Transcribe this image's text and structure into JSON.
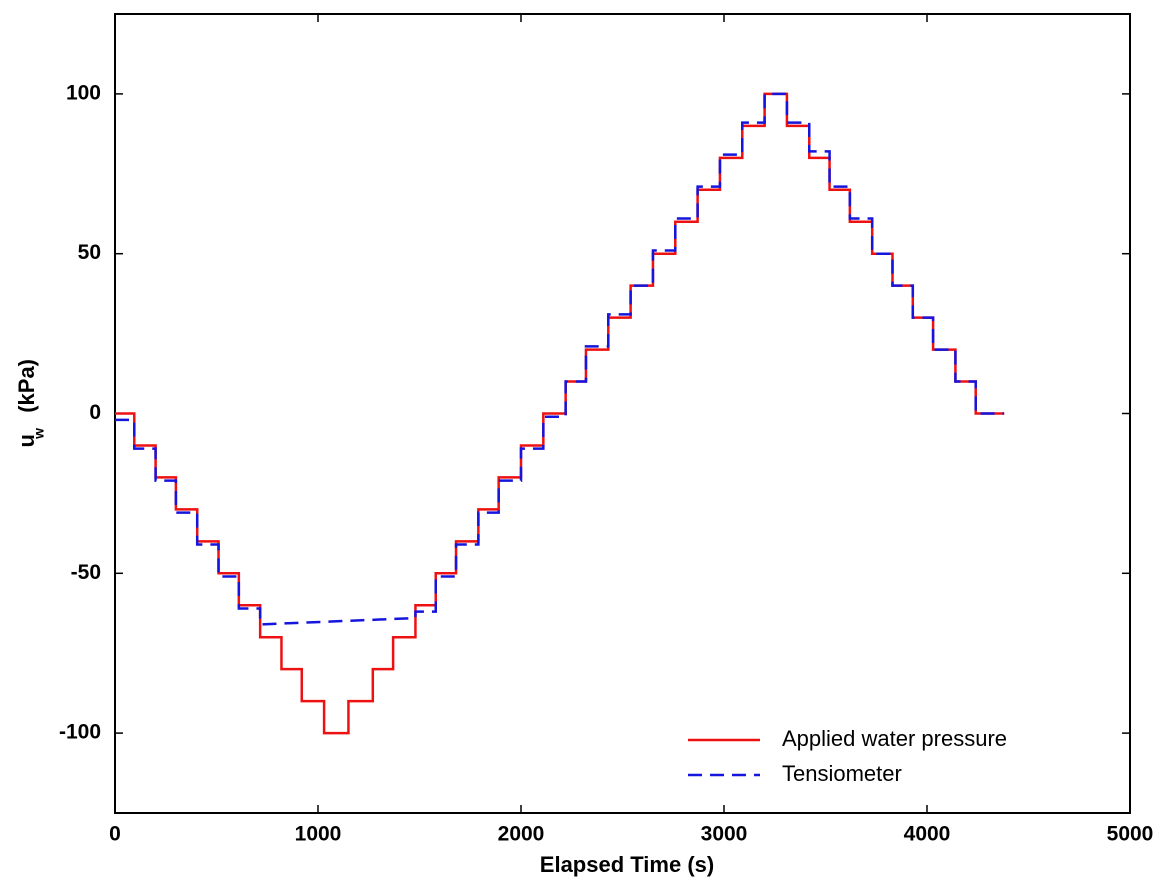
{
  "chart_data": {
    "type": "line",
    "x_label": "Elapsed Time (s)",
    "y_label": "u",
    "y_label_sub": "w",
    "y_label_unit": "(kPa)",
    "xlim": [
      0,
      5000
    ],
    "xticks": [
      0,
      1000,
      2000,
      3000,
      4000,
      5000
    ],
    "ylim": [
      -125,
      125
    ],
    "yticks": [
      -100,
      -50,
      0,
      50,
      100
    ],
    "grid": false,
    "legend": "lower right",
    "series": [
      {
        "name": "Applied water pressure",
        "color": "#ee1111",
        "dash": "solid",
        "x": [
          0,
          95,
          95,
          200,
          200,
          300,
          300,
          405,
          405,
          510,
          510,
          610,
          610,
          715,
          715,
          820,
          820,
          920,
          920,
          1030,
          1030,
          1150,
          1150,
          1270,
          1270,
          1370,
          1370,
          1480,
          1480,
          1580,
          1580,
          1680,
          1680,
          1790,
          1790,
          1890,
          1890,
          2000,
          2000,
          2110,
          2110,
          2220,
          2220,
          2320,
          2320,
          2430,
          2430,
          2540,
          2540,
          2650,
          2650,
          2760,
          2760,
          2870,
          2870,
          2980,
          2980,
          3090,
          3090,
          3200,
          3200,
          3310,
          3310,
          3420,
          3420,
          3520,
          3520,
          3620,
          3620,
          3730,
          3730,
          3830,
          3830,
          3930,
          3930,
          4030,
          4030,
          4140,
          4140,
          4240,
          4240,
          4380
        ],
        "values": [
          0,
          0,
          -10,
          -10,
          -20,
          -20,
          -30,
          -30,
          -40,
          -40,
          -50,
          -50,
          -60,
          -60,
          -70,
          -70,
          -80,
          -80,
          -90,
          -90,
          -100,
          -100,
          -90,
          -90,
          -80,
          -80,
          -70,
          -70,
          -60,
          -60,
          -50,
          -50,
          -40,
          -40,
          -30,
          -30,
          -20,
          -20,
          -10,
          -10,
          0,
          0,
          10,
          10,
          20,
          20,
          30,
          30,
          40,
          40,
          50,
          50,
          60,
          60,
          70,
          70,
          80,
          80,
          90,
          90,
          100,
          100,
          90,
          90,
          80,
          80,
          70,
          70,
          60,
          60,
          50,
          50,
          40,
          40,
          30,
          30,
          20,
          20,
          10,
          10,
          0,
          0
        ]
      },
      {
        "name": "Tensiometer",
        "color": "#1515dd",
        "dash": "dashed",
        "x": [
          0,
          95,
          95,
          200,
          200,
          300,
          300,
          405,
          405,
          510,
          510,
          610,
          610,
          715,
          715,
          1480,
          1480,
          1580,
          1580,
          1680,
          1680,
          1790,
          1790,
          1890,
          1890,
          2000,
          2000,
          2110,
          2110,
          2220,
          2220,
          2320,
          2320,
          2430,
          2430,
          2540,
          2540,
          2650,
          2650,
          2760,
          2760,
          2870,
          2870,
          2980,
          2980,
          3090,
          3090,
          3200,
          3200,
          3310,
          3310,
          3420,
          3420,
          3520,
          3520,
          3620,
          3620,
          3730,
          3730,
          3830,
          3830,
          3930,
          3930,
          4030,
          4030,
          4140,
          4140,
          4240,
          4240,
          4380
        ],
        "values": [
          -2,
          -2,
          -11,
          -11,
          -21,
          -21,
          -31,
          -31,
          -41,
          -41,
          -51,
          -51,
          -61,
          -61,
          -66,
          -64,
          -62,
          -62,
          -51,
          -51,
          -41,
          -41,
          -31,
          -31,
          -21,
          -21,
          -11,
          -11,
          -1,
          -1,
          10,
          10,
          21,
          21,
          31,
          31,
          40,
          40,
          51,
          51,
          61,
          61,
          71,
          71,
          81,
          81,
          91,
          91,
          100,
          100,
          91,
          91,
          82,
          82,
          71,
          71,
          61,
          61,
          50,
          50,
          40,
          40,
          30,
          30,
          20,
          20,
          10,
          10,
          0,
          0
        ]
      }
    ]
  }
}
